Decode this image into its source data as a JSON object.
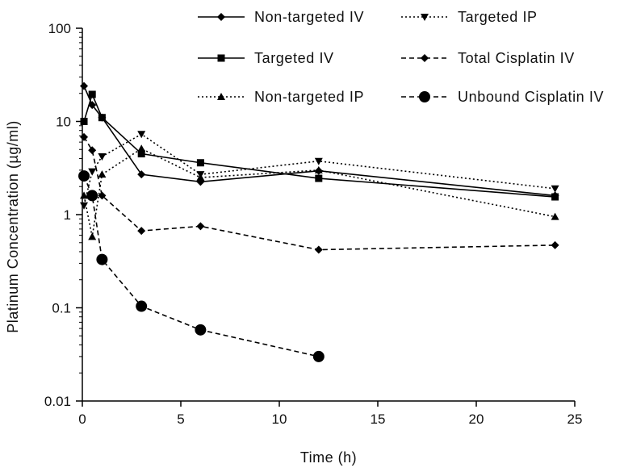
{
  "chart_data": {
    "type": "line",
    "xlabel": "Time (h)",
    "ylabel": "Platinum Concentration (µg/ml)",
    "xlim": [
      0,
      25
    ],
    "ylim": [
      0.01,
      100
    ],
    "yscale": "log",
    "grid": false,
    "legend_position": "top",
    "x_ticks": [
      0,
      5,
      10,
      15,
      20,
      25
    ],
    "x_tick_labels": [
      "0",
      "5",
      "10",
      "15",
      "20",
      "25"
    ],
    "y_ticks": [
      0.01,
      0.1,
      1,
      10,
      100
    ],
    "y_tick_labels": [
      "0.01",
      "0.1",
      "1",
      "10",
      "100"
    ],
    "series": [
      {
        "name": "Non-targeted IV",
        "line": "solid",
        "marker": "diamond",
        "color": "#000000",
        "x": [
          0.083,
          0.5,
          1,
          3,
          6,
          12,
          24
        ],
        "y": [
          24,
          15,
          11,
          2.7,
          2.25,
          2.95,
          1.6
        ]
      },
      {
        "name": "Targeted IV",
        "line": "solid",
        "marker": "square",
        "color": "#000000",
        "x": [
          0.083,
          0.5,
          1,
          3,
          6,
          12,
          24
        ],
        "y": [
          10,
          19.5,
          11,
          4.5,
          3.6,
          2.45,
          1.55
        ]
      },
      {
        "name": "Non-targeted IP",
        "line": "dotted",
        "marker": "triangle-up",
        "color": "#000000",
        "x": [
          0.083,
          0.5,
          1,
          3,
          6,
          12,
          24
        ],
        "y": [
          1.6,
          0.58,
          2.7,
          5.1,
          2.5,
          3.0,
          0.95
        ]
      },
      {
        "name": "Targeted IP",
        "line": "dotted",
        "marker": "triangle-down",
        "color": "#000000",
        "x": [
          0.083,
          0.5,
          1,
          3,
          6,
          12,
          24
        ],
        "y": [
          1.25,
          2.9,
          4.2,
          7.3,
          2.7,
          3.75,
          1.9
        ]
      },
      {
        "name": "Total Cisplatin IV",
        "line": "dashed",
        "marker": "diamond",
        "color": "#000000",
        "x": [
          0.083,
          0.5,
          1,
          3,
          6,
          12,
          24
        ],
        "y": [
          6.8,
          4.9,
          1.6,
          0.67,
          0.75,
          0.42,
          0.47
        ]
      },
      {
        "name": "Unbound Cisplatin IV",
        "line": "dashed",
        "marker": "circle",
        "color": "#000000",
        "x": [
          0.083,
          0.5,
          1,
          3,
          6,
          12
        ],
        "y": [
          2.6,
          1.6,
          0.33,
          0.104,
          0.058,
          0.03
        ]
      }
    ]
  }
}
